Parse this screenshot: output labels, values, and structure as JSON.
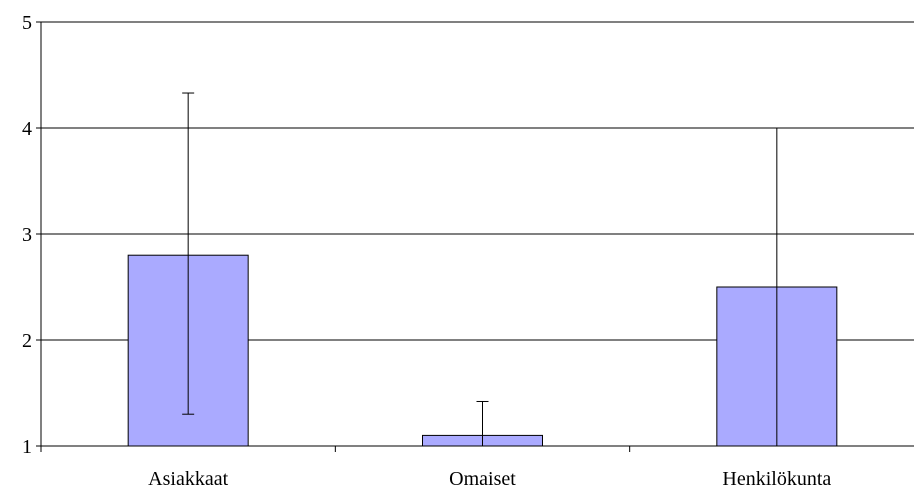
{
  "chart_data": {
    "type": "bar",
    "categories": [
      "Asiakkaat",
      "Omaiset",
      "Henkilökunta"
    ],
    "values": [
      2.8,
      1.1,
      2.5
    ],
    "error_bars": [
      {
        "low": 1.3,
        "high": 4.33
      },
      {
        "low": 1.0,
        "high": 1.42
      },
      {
        "low": 1.0,
        "high": 4.0
      }
    ],
    "ylim": [
      1,
      5
    ],
    "yticks": [
      "1",
      "2",
      "3",
      "4",
      "5"
    ],
    "grid": true,
    "title": "",
    "xlabel": "",
    "ylabel": "",
    "colors": {
      "bar_fill": "#aaaaff",
      "bar_stroke": "#000000",
      "grid": "#000000",
      "axis": "#000000"
    }
  }
}
